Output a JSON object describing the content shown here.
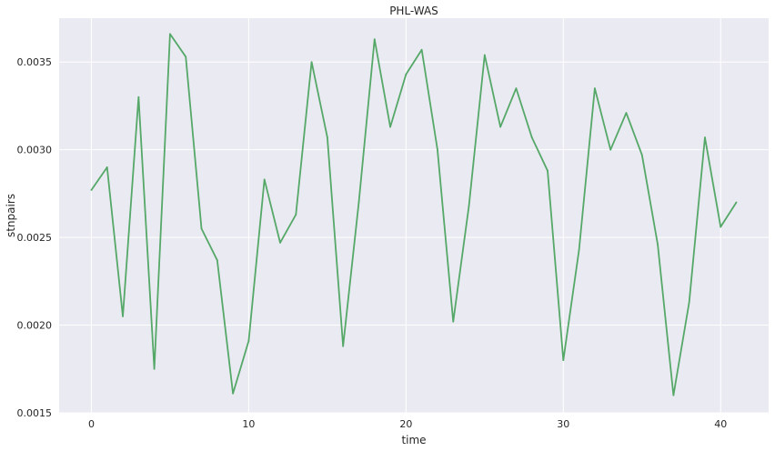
{
  "chart_data": {
    "type": "line",
    "title": "PHL-WAS",
    "xlabel": "time",
    "ylabel": "stnpairs",
    "xlim": [
      -2.05,
      43.05
    ],
    "ylim": [
      0.0015,
      0.00375
    ],
    "x_ticks": [
      0,
      10,
      20,
      30,
      40
    ],
    "x_tick_labels": [
      "0",
      "10",
      "20",
      "30",
      "40"
    ],
    "y_ticks": [
      0.0015,
      0.002,
      0.0025,
      0.003,
      0.0035
    ],
    "y_tick_labels": [
      "0.0015",
      "0.0020",
      "0.0025",
      "0.0030",
      "0.0035"
    ],
    "grid": true,
    "background_color": "#eaeaf2",
    "grid_color": "#ffffff",
    "series": [
      {
        "color": "#55a868",
        "x": [
          0,
          1,
          2,
          3,
          4,
          5,
          6,
          7,
          8,
          9,
          10,
          11,
          12,
          13,
          14,
          15,
          16,
          17,
          18,
          19,
          20,
          21,
          22,
          23,
          24,
          25,
          26,
          27,
          28,
          29,
          30,
          31,
          32,
          33,
          34,
          35,
          36,
          37,
          38,
          39,
          40,
          41
        ],
        "values": [
          0.00277,
          0.0029,
          0.00205,
          0.0033,
          0.00175,
          0.00366,
          0.00353,
          0.00255,
          0.00237,
          0.00161,
          0.00191,
          0.00283,
          0.00247,
          0.00263,
          0.0035,
          0.00307,
          0.00188,
          0.0027,
          0.00363,
          0.00313,
          0.00343,
          0.00357,
          0.003,
          0.00202,
          0.00268,
          0.00354,
          0.00313,
          0.00335,
          0.00307,
          0.00288,
          0.0018,
          0.00243,
          0.00335,
          0.003,
          0.00321,
          0.00297,
          0.00246,
          0.0016,
          0.00213,
          0.00307,
          0.00256,
          0.0027
        ]
      }
    ]
  }
}
